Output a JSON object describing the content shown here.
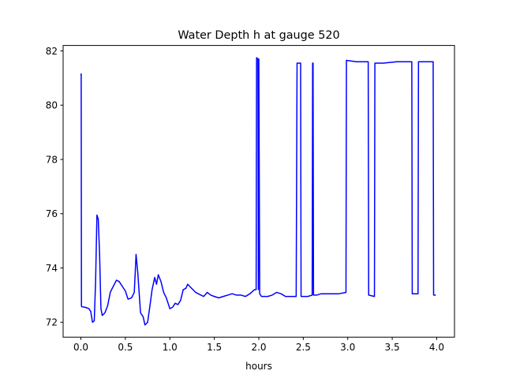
{
  "chart_data": {
    "type": "line",
    "title": "Water Depth h at gauge 520",
    "xlabel": "hours",
    "ylabel": "",
    "xlim": [
      -0.2,
      4.2
    ],
    "ylim": [
      71.45,
      82.2
    ],
    "xticks": [
      0.0,
      0.5,
      1.0,
      1.5,
      2.0,
      2.5,
      3.0,
      3.5,
      4.0
    ],
    "xtick_labels": [
      "0.0",
      "0.5",
      "1.0",
      "1.5",
      "2.0",
      "2.5",
      "3.0",
      "3.5",
      "4.0"
    ],
    "yticks": [
      72,
      74,
      76,
      78,
      80,
      82
    ],
    "ytick_labels": [
      "72",
      "74",
      "76",
      "78",
      "80",
      "82"
    ],
    "grid": false,
    "legend": "none",
    "series": [
      {
        "color": "#0000ff",
        "x": [
          0.0,
          0.003,
          0.006,
          0.01,
          0.05,
          0.09,
          0.11,
          0.13,
          0.15,
          0.165,
          0.18,
          0.195,
          0.21,
          0.225,
          0.24,
          0.27,
          0.3,
          0.33,
          0.36,
          0.4,
          0.43,
          0.46,
          0.5,
          0.53,
          0.57,
          0.6,
          0.62,
          0.64,
          0.67,
          0.7,
          0.72,
          0.75,
          0.78,
          0.8,
          0.83,
          0.85,
          0.87,
          0.9,
          0.93,
          0.96,
          1.0,
          1.03,
          1.06,
          1.09,
          1.12,
          1.15,
          1.18,
          1.2,
          1.23,
          1.26,
          1.29,
          1.32,
          1.35,
          1.38,
          1.42,
          1.46,
          1.5,
          1.55,
          1.6,
          1.65,
          1.7,
          1.75,
          1.8,
          1.85,
          1.9,
          1.95,
          1.97,
          1.975,
          1.99,
          1.995,
          2.0,
          2.01,
          2.03,
          2.06,
          2.1,
          2.15,
          2.2,
          2.25,
          2.3,
          2.35,
          2.42,
          2.43,
          2.47,
          2.475,
          2.55,
          2.6,
          2.605,
          2.61,
          2.615,
          2.65,
          2.7,
          2.8,
          2.9,
          2.98,
          2.985,
          3.1,
          3.23,
          3.235,
          3.3,
          3.305,
          3.4,
          3.55,
          3.72,
          3.725,
          3.79,
          3.795,
          3.85,
          3.96,
          3.965,
          3.99
        ],
        "y": [
          81.1,
          81.15,
          72.6,
          72.57,
          72.55,
          72.5,
          72.4,
          72.0,
          72.05,
          73.5,
          75.95,
          75.8,
          74.5,
          72.5,
          72.25,
          72.35,
          72.6,
          73.1,
          73.3,
          73.55,
          73.5,
          73.35,
          73.15,
          72.85,
          72.9,
          73.1,
          74.5,
          73.8,
          72.35,
          72.2,
          71.9,
          72.0,
          72.7,
          73.2,
          73.65,
          73.4,
          73.75,
          73.5,
          73.1,
          72.9,
          72.5,
          72.55,
          72.7,
          72.65,
          72.8,
          73.2,
          73.25,
          73.4,
          73.3,
          73.2,
          73.1,
          73.05,
          73.0,
          72.95,
          73.1,
          73.0,
          72.95,
          72.9,
          72.95,
          73.0,
          73.05,
          73.0,
          73.0,
          72.95,
          73.05,
          73.2,
          73.2,
          81.75,
          81.7,
          73.2,
          81.7,
          73.05,
          72.95,
          72.95,
          72.95,
          73.0,
          73.1,
          73.05,
          72.95,
          72.95,
          72.95,
          81.55,
          81.55,
          72.95,
          72.95,
          73.0,
          81.55,
          81.55,
          73.0,
          73.0,
          73.05,
          73.05,
          73.05,
          73.1,
          81.65,
          81.6,
          81.6,
          73.0,
          72.95,
          81.55,
          81.55,
          81.6,
          81.6,
          73.05,
          73.05,
          81.6,
          81.6,
          81.6,
          73.0,
          73.0
        ]
      }
    ]
  }
}
